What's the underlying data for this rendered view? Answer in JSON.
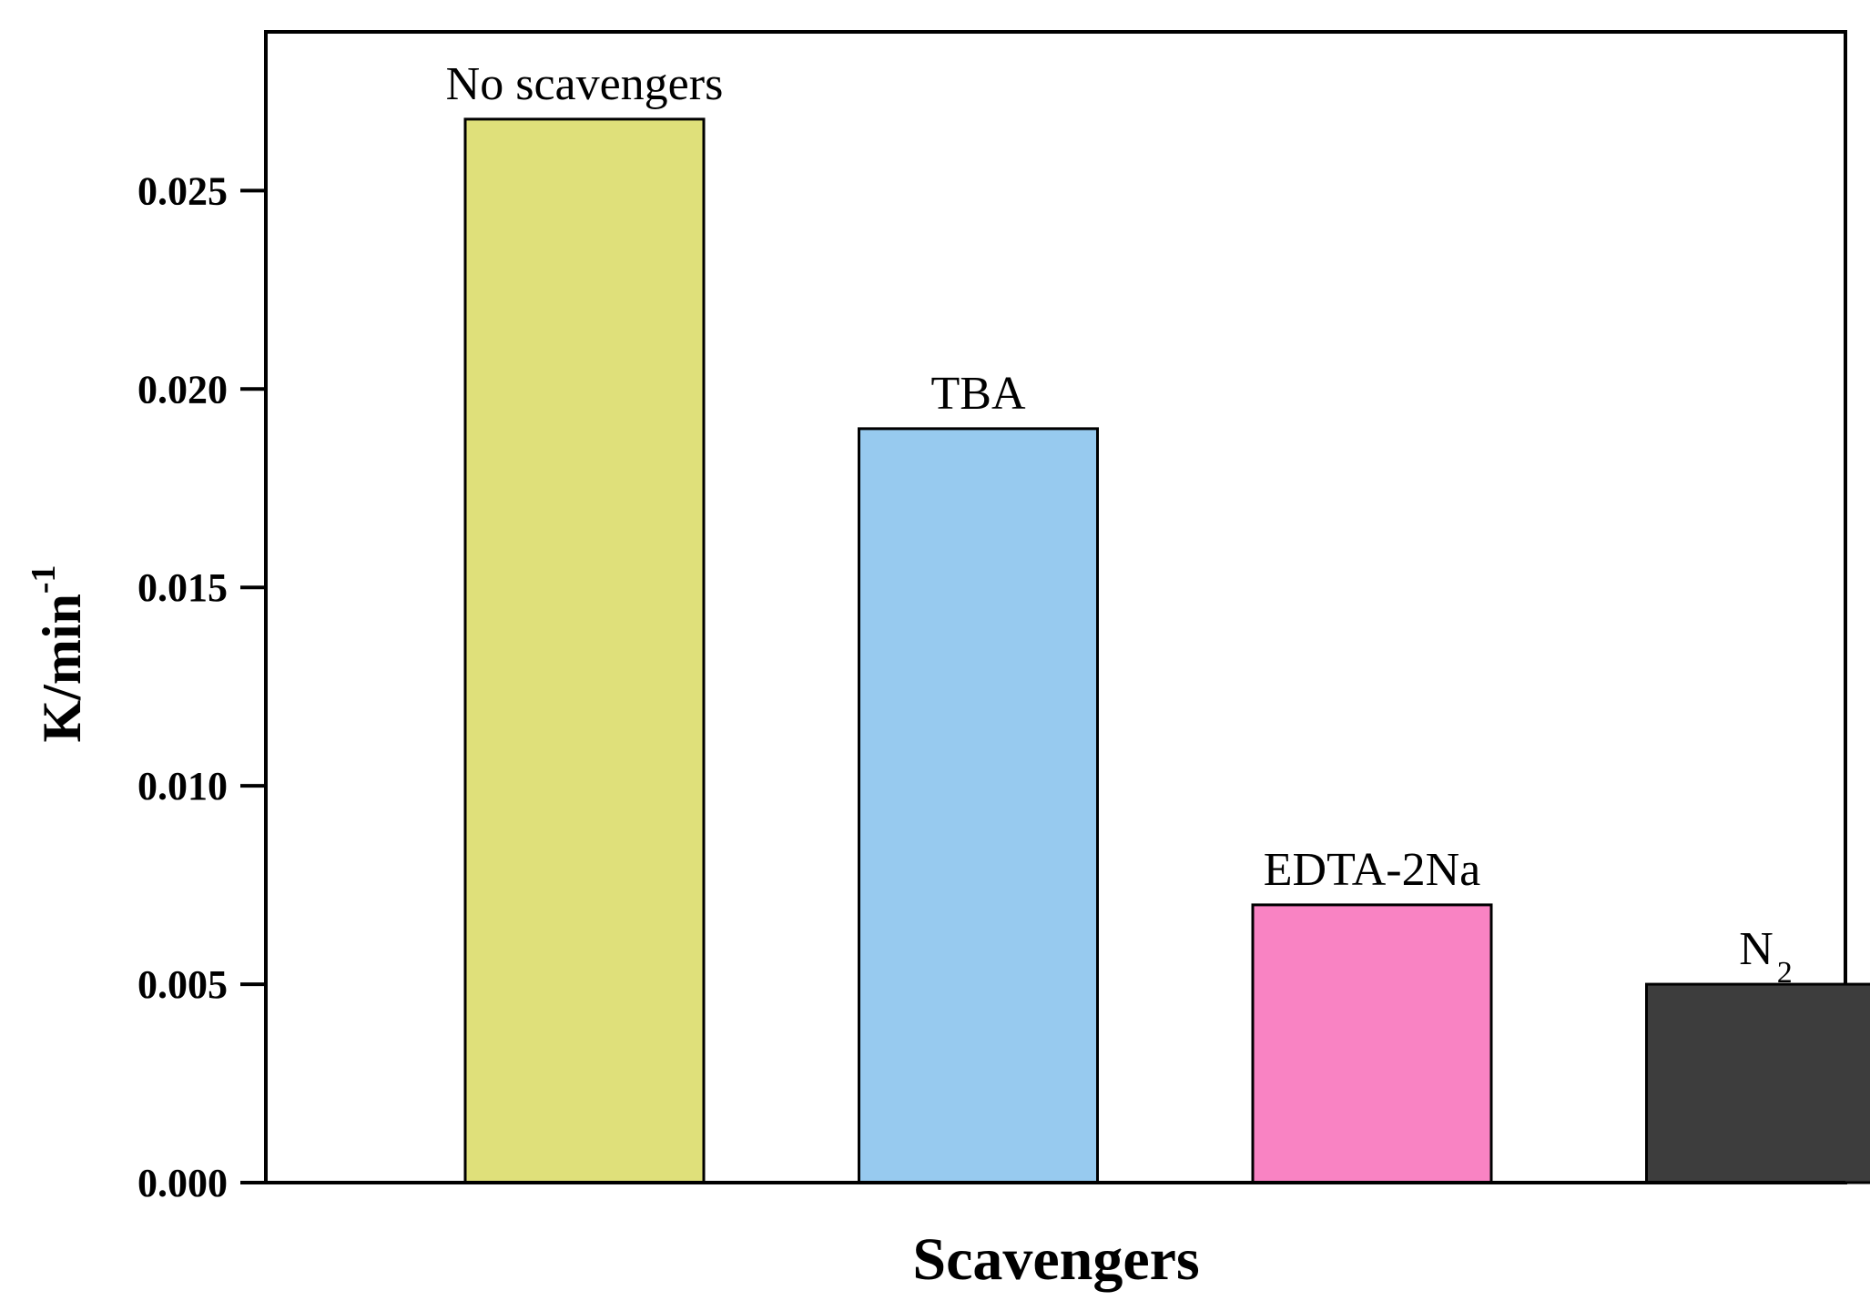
{
  "chart_data": {
    "type": "bar",
    "xlabel": "Scavengers",
    "ylabel": "K/min",
    "ylabel_sup": "-1",
    "ylim": [
      0,
      0.029
    ],
    "yticks": [
      0.0,
      0.005,
      0.01,
      0.015,
      0.02,
      0.025
    ],
    "ytick_labels": [
      "0.000",
      "0.005",
      "0.010",
      "0.015",
      "0.020",
      "0.025"
    ],
    "grid": false,
    "legend": "none",
    "bars": [
      {
        "label": "No scavengers",
        "sub": "",
        "value": 0.0268,
        "color": "#dfe07a"
      },
      {
        "label": "TBA",
        "sub": "",
        "value": 0.019,
        "color": "#97caef"
      },
      {
        "label": "EDTA-2Na",
        "sub": "",
        "value": 0.007,
        "color": "#f983c3"
      },
      {
        "label": "N",
        "sub": "2",
        "value": 0.005,
        "color": "#3d3d3d"
      }
    ]
  }
}
